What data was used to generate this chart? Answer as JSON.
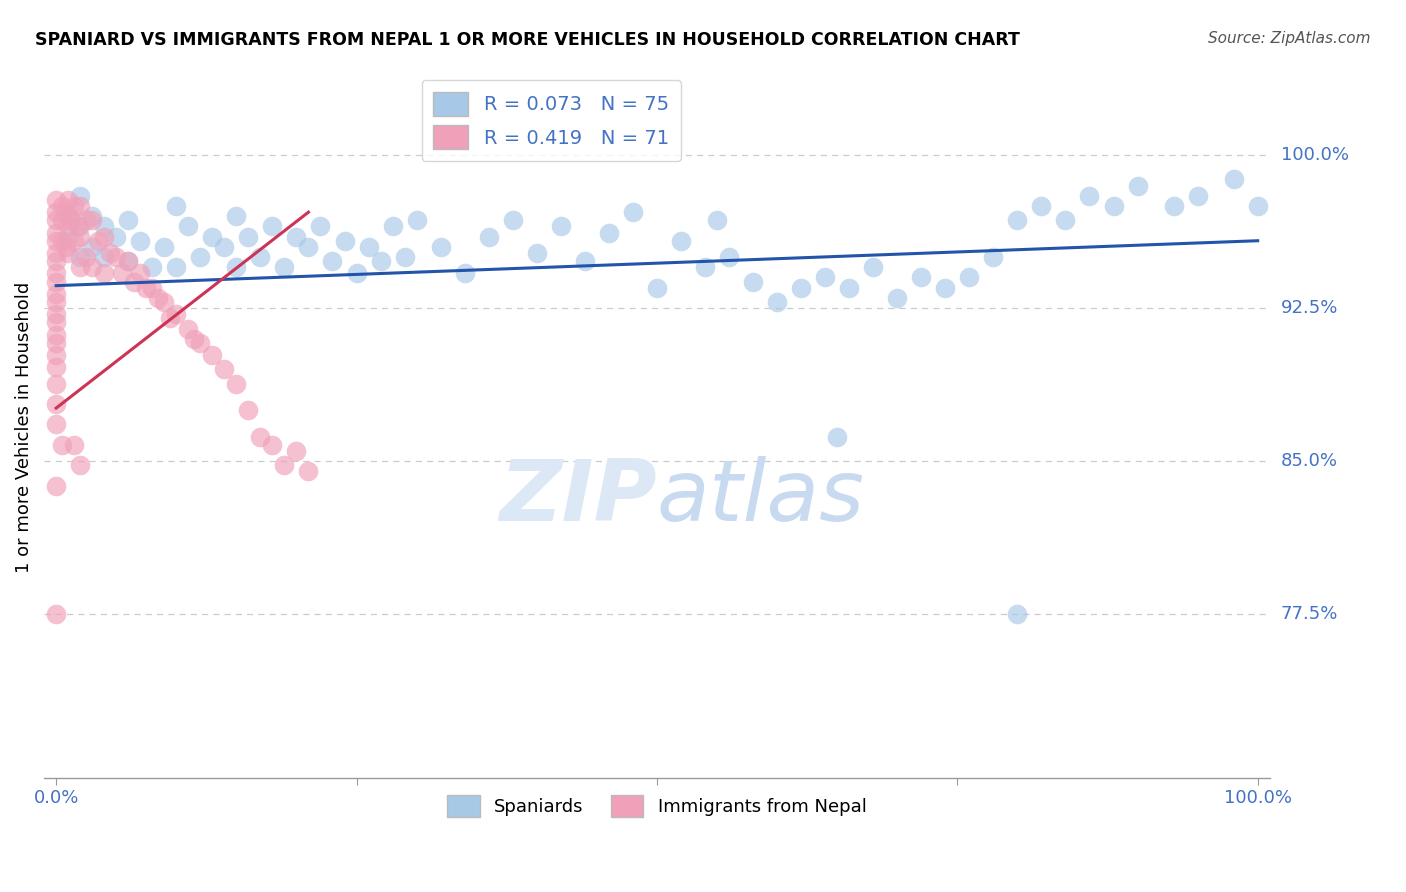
{
  "title": "SPANIARD VS IMMIGRANTS FROM NEPAL 1 OR MORE VEHICLES IN HOUSEHOLD CORRELATION CHART",
  "source": "Source: ZipAtlas.com",
  "ylabel": "1 or more Vehicles in Household",
  "ytick_values": [
    0.775,
    0.85,
    0.925,
    1.0
  ],
  "ytick_labels": [
    "77.5%",
    "85.0%",
    "92.5%",
    "100.0%"
  ],
  "blue_color": "#a8c8e8",
  "pink_color": "#f0a0b8",
  "blue_line_color": "#2255aa",
  "pink_line_color": "#cc3355",
  "legend_blue_text": "R = 0.073   N = 75",
  "legend_pink_text": "R = 0.419   N = 71",
  "legend_label_blue": "Spaniards",
  "legend_label_pink": "Immigrants from Nepal",
  "text_color_blue": "#4472c4",
  "ylim_low": 0.695,
  "ylim_high": 1.038,
  "xlim_low": -0.01,
  "xlim_high": 1.01,
  "blue_x": [
    0.01,
    0.01,
    0.02,
    0.02,
    0.02,
    0.03,
    0.03,
    0.04,
    0.04,
    0.05,
    0.06,
    0.06,
    0.07,
    0.08,
    0.09,
    0.1,
    0.1,
    0.11,
    0.12,
    0.13,
    0.14,
    0.15,
    0.15,
    0.16,
    0.17,
    0.18,
    0.19,
    0.2,
    0.21,
    0.22,
    0.23,
    0.24,
    0.25,
    0.26,
    0.27,
    0.28,
    0.29,
    0.3,
    0.32,
    0.34,
    0.36,
    0.38,
    0.4,
    0.42,
    0.44,
    0.46,
    0.48,
    0.5,
    0.52,
    0.54,
    0.55,
    0.56,
    0.58,
    0.6,
    0.62,
    0.64,
    0.66,
    0.68,
    0.7,
    0.72,
    0.74,
    0.76,
    0.78,
    0.8,
    0.82,
    0.84,
    0.86,
    0.88,
    0.9,
    0.93,
    0.95,
    0.98,
    1.0,
    0.65,
    0.8
  ],
  "blue_y": [
    0.97,
    0.96,
    0.98,
    0.965,
    0.95,
    0.97,
    0.955,
    0.965,
    0.95,
    0.96,
    0.968,
    0.948,
    0.958,
    0.945,
    0.955,
    0.975,
    0.945,
    0.965,
    0.95,
    0.96,
    0.955,
    0.97,
    0.945,
    0.96,
    0.95,
    0.965,
    0.945,
    0.96,
    0.955,
    0.965,
    0.948,
    0.958,
    0.942,
    0.955,
    0.948,
    0.965,
    0.95,
    0.968,
    0.955,
    0.942,
    0.96,
    0.968,
    0.952,
    0.965,
    0.948,
    0.962,
    0.972,
    0.935,
    0.958,
    0.945,
    0.968,
    0.95,
    0.938,
    0.928,
    0.935,
    0.94,
    0.935,
    0.945,
    0.93,
    0.94,
    0.935,
    0.94,
    0.95,
    0.968,
    0.975,
    0.968,
    0.98,
    0.975,
    0.985,
    0.975,
    0.98,
    0.988,
    0.975,
    0.862,
    0.775
  ],
  "pink_x": [
    0.0,
    0.0,
    0.0,
    0.0,
    0.0,
    0.0,
    0.0,
    0.0,
    0.0,
    0.0,
    0.0,
    0.0,
    0.0,
    0.0,
    0.0,
    0.0,
    0.0,
    0.0,
    0.0,
    0.0,
    0.005,
    0.005,
    0.005,
    0.008,
    0.008,
    0.01,
    0.01,
    0.01,
    0.012,
    0.015,
    0.015,
    0.018,
    0.02,
    0.02,
    0.02,
    0.025,
    0.025,
    0.03,
    0.03,
    0.035,
    0.04,
    0.04,
    0.045,
    0.05,
    0.055,
    0.06,
    0.065,
    0.07,
    0.075,
    0.08,
    0.085,
    0.09,
    0.095,
    0.1,
    0.11,
    0.115,
    0.12,
    0.13,
    0.14,
    0.15,
    0.16,
    0.17,
    0.18,
    0.19,
    0.2,
    0.21,
    0.015,
    0.02,
    0.005,
    0.0,
    0.0
  ],
  "pink_y": [
    0.978,
    0.972,
    0.968,
    0.962,
    0.958,
    0.952,
    0.948,
    0.942,
    0.938,
    0.932,
    0.928,
    0.922,
    0.918,
    0.912,
    0.908,
    0.902,
    0.896,
    0.888,
    0.878,
    0.868,
    0.975,
    0.968,
    0.958,
    0.972,
    0.955,
    0.978,
    0.965,
    0.952,
    0.968,
    0.975,
    0.958,
    0.965,
    0.975,
    0.96,
    0.945,
    0.968,
    0.95,
    0.968,
    0.945,
    0.958,
    0.96,
    0.942,
    0.952,
    0.95,
    0.942,
    0.948,
    0.938,
    0.942,
    0.935,
    0.935,
    0.93,
    0.928,
    0.92,
    0.922,
    0.915,
    0.91,
    0.908,
    0.902,
    0.895,
    0.888,
    0.875,
    0.862,
    0.858,
    0.848,
    0.855,
    0.845,
    0.858,
    0.848,
    0.858,
    0.838,
    0.775
  ]
}
